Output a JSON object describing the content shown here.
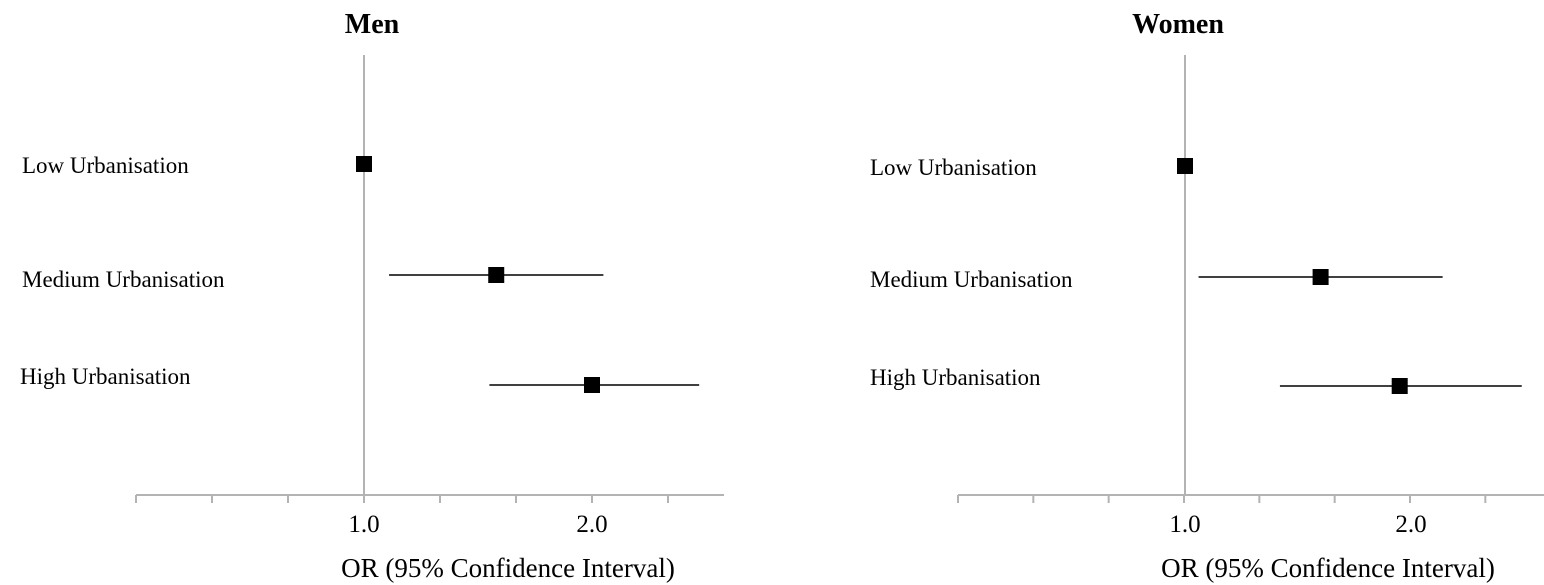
{
  "chart_data": [
    {
      "type": "forest",
      "title": "Men",
      "xlabel": "OR (95% Confidence Interval)",
      "xticks": [
        1.0,
        2.0
      ],
      "xtick_labels": [
        "1.0",
        "2.0"
      ],
      "reference_line": 1.0,
      "categories": [
        "Low Urbanisation",
        "Medium Urbanisation",
        "High Urbanisation"
      ],
      "estimates": [
        1.0,
        1.58,
        2.0
      ],
      "ci_lower": [
        null,
        1.11,
        1.55
      ],
      "ci_upper": [
        null,
        2.05,
        2.47
      ]
    },
    {
      "type": "forest",
      "title": "Women",
      "xlabel": "OR (95% Confidence Interval)",
      "xticks": [
        1.0,
        2.0
      ],
      "xtick_labels": [
        "1.0",
        "2.0"
      ],
      "reference_line": 1.0,
      "categories": [
        "Low Urbanisation",
        "Medium Urbanisation",
        "High Urbanisation"
      ],
      "estimates": [
        1.0,
        1.6,
        1.95
      ],
      "ci_lower": [
        null,
        1.06,
        1.42
      ],
      "ci_upper": [
        null,
        2.14,
        2.49
      ]
    }
  ]
}
